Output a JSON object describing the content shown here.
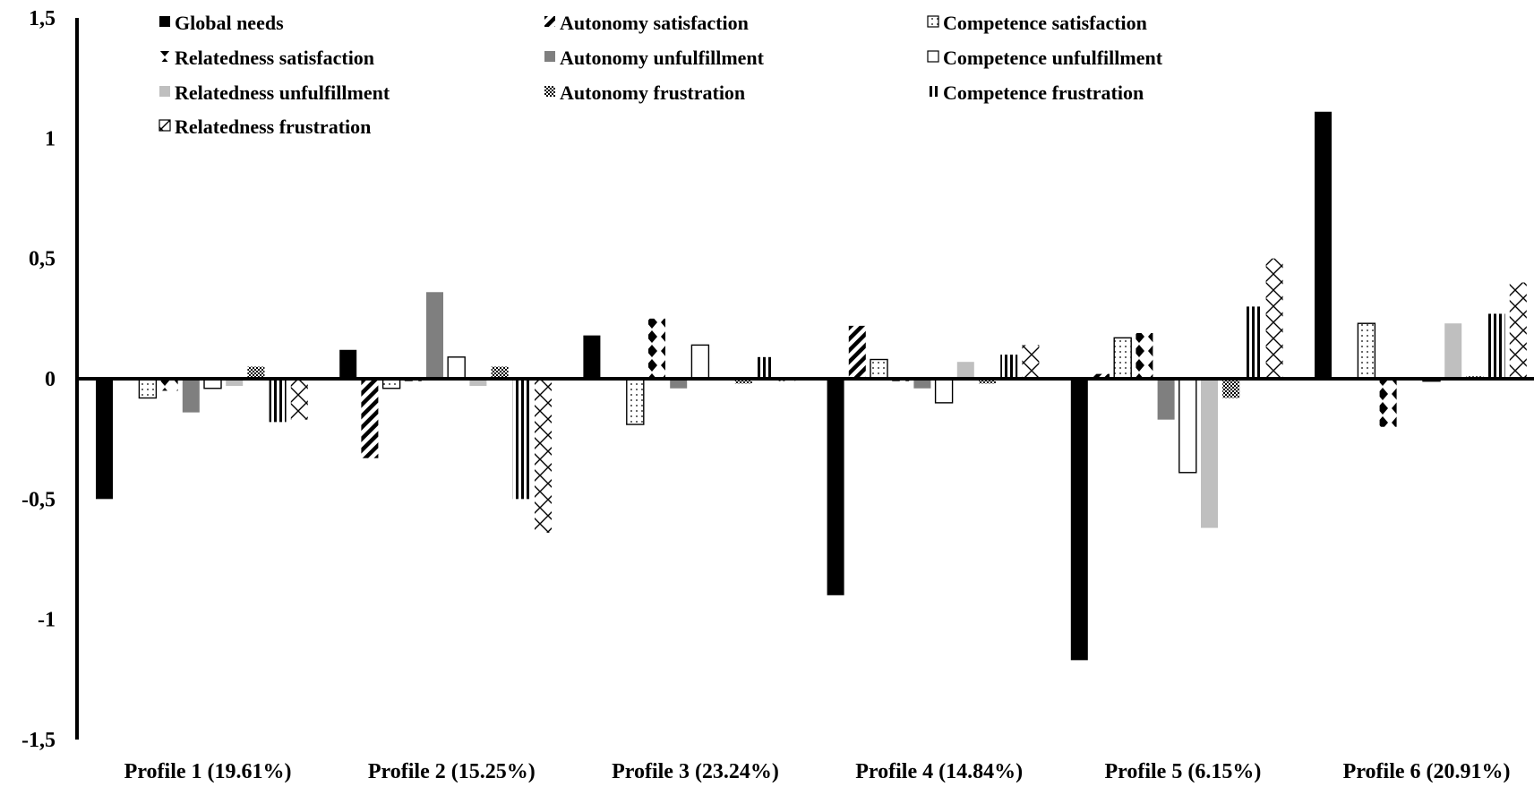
{
  "chart_data": {
    "type": "bar",
    "title": "",
    "xlabel": "",
    "ylabel": "",
    "ylim": [
      -1.5,
      1.5
    ],
    "yticks": [
      "1,5",
      "1",
      "0,5",
      "0",
      "-0,5",
      "-1",
      "-1,5"
    ],
    "ytick_values": [
      1.5,
      1,
      0.5,
      0,
      -0.5,
      -1,
      -1.5
    ],
    "grid": false,
    "legend_position": "top",
    "categories": [
      "Profile 1 (19.61%)",
      "Profile 2 (15.25%)",
      "Profile 3 (23.24%)",
      "Profile 4 (14.84%)",
      "Profile 5 (6.15%)",
      "Profile 6 (20.91%)"
    ],
    "series": [
      {
        "name": "Global needs",
        "pattern": "solid-black",
        "values": [
          -0.5,
          0.12,
          0.18,
          -0.9,
          -1.17,
          1.11
        ]
      },
      {
        "name": "Autonomy satisfaction",
        "pattern": "diagonal-stripes",
        "values": [
          0.0,
          -0.33,
          0.0,
          0.22,
          0.02,
          0.0
        ]
      },
      {
        "name": "Competence satisfaction",
        "pattern": "dots",
        "values": [
          -0.08,
          -0.04,
          -0.19,
          0.08,
          0.17,
          0.23
        ]
      },
      {
        "name": "Relatedness satisfaction",
        "pattern": "diamonds",
        "values": [
          -0.05,
          -0.01,
          0.25,
          -0.01,
          0.19,
          -0.2
        ]
      },
      {
        "name": "Autonomy unfulfillment",
        "pattern": "solid-dark-gray",
        "values": [
          -0.14,
          0.36,
          -0.04,
          -0.04,
          -0.17,
          0.0
        ]
      },
      {
        "name": "Competence unfulfillment",
        "pattern": "white-outline",
        "values": [
          -0.04,
          0.09,
          0.14,
          -0.1,
          -0.39,
          -0.01
        ]
      },
      {
        "name": "Relatedness unfulfillment",
        "pattern": "solid-light-gray",
        "values": [
          -0.03,
          -0.03,
          0.0,
          0.07,
          -0.62,
          0.23
        ]
      },
      {
        "name": "Autonomy frustration",
        "pattern": "checker",
        "values": [
          0.05,
          0.05,
          -0.02,
          -0.02,
          -0.08,
          0.01
        ]
      },
      {
        "name": "Competence frustration",
        "pattern": "vertical-stripes",
        "values": [
          -0.18,
          -0.5,
          0.09,
          0.1,
          0.3,
          0.27
        ]
      },
      {
        "name": "Relatedness frustration",
        "pattern": "crosshatch",
        "values": [
          -0.17,
          -0.64,
          -0.01,
          0.14,
          0.5,
          0.4
        ]
      }
    ]
  }
}
